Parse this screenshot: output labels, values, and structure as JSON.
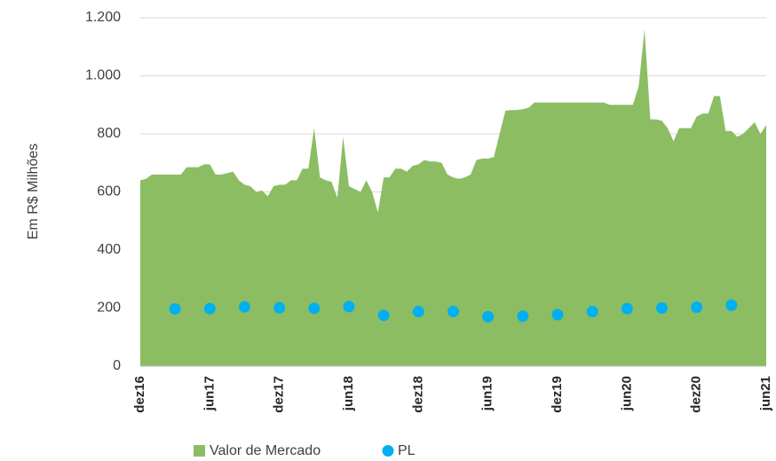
{
  "chart_data": {
    "type": "area",
    "ylabel": "Em R$ Milhões",
    "xlim": [
      0,
      54
    ],
    "xticks": [
      {
        "value": 0,
        "label": "dez16"
      },
      {
        "value": 6,
        "label": "jun17"
      },
      {
        "value": 12,
        "label": "dez17"
      },
      {
        "value": 18,
        "label": "jun18"
      },
      {
        "value": 24,
        "label": "dez18"
      },
      {
        "value": 30,
        "label": "jun19"
      },
      {
        "value": 36,
        "label": "dez19"
      },
      {
        "value": 42,
        "label": "jun20"
      },
      {
        "value": 48,
        "label": "dez20"
      },
      {
        "value": 54,
        "label": "jun21"
      }
    ],
    "ylim": [
      0,
      1200
    ],
    "yticks": [
      0,
      200,
      400,
      600,
      800,
      {
        "value": 1000,
        "label": "1.000"
      },
      {
        "value": 1200,
        "label": "1.200"
      }
    ],
    "grid": true,
    "legend": "bottom",
    "series": [
      {
        "name": "Valor de Mercado",
        "type": "area",
        "color": "#8cbd63",
        "x": [
          0,
          0.5,
          1,
          1.5,
          2,
          2.5,
          3,
          3.5,
          4,
          4.5,
          5,
          5.5,
          6,
          6.5,
          7,
          7.5,
          8,
          8.5,
          9,
          9.5,
          10,
          10.5,
          11,
          11.5,
          12,
          12.5,
          13,
          13.5,
          14,
          14.5,
          15,
          15.5,
          16,
          16.5,
          17,
          17.5,
          18,
          18.5,
          19,
          19.5,
          20,
          20.5,
          21,
          21.5,
          22,
          22.5,
          23,
          23.5,
          24,
          24.5,
          25,
          25.5,
          26,
          26.5,
          27,
          27.5,
          28,
          28.5,
          29,
          29.5,
          30,
          30.5,
          31,
          31.5,
          32,
          32.5,
          33,
          33.5,
          34,
          34.5,
          35,
          35.5,
          36,
          36.5,
          37,
          37.5,
          38,
          38.5,
          39,
          39.5,
          40,
          40.5,
          41,
          41.5,
          42,
          42.5,
          43,
          43.5,
          44,
          44.5,
          45,
          45.5,
          46,
          46.5,
          47,
          47.5,
          48,
          48.5,
          49,
          49.5,
          50,
          50.5,
          51,
          51.5,
          52,
          52.5,
          53,
          53.5,
          54
        ],
        "values": [
          640,
          645,
          660,
          660,
          660,
          660,
          660,
          660,
          685,
          685,
          685,
          695,
          695,
          660,
          660,
          665,
          670,
          640,
          625,
          620,
          600,
          605,
          585,
          620,
          625,
          625,
          640,
          640,
          680,
          680,
          820,
          650,
          640,
          635,
          580,
          790,
          620,
          610,
          600,
          640,
          600,
          530,
          650,
          650,
          680,
          680,
          670,
          690,
          695,
          710,
          705,
          705,
          700,
          660,
          650,
          645,
          650,
          660,
          710,
          715,
          715,
          720,
          800,
          880,
          882,
          882,
          885,
          890,
          908,
          908,
          908,
          908,
          908,
          908,
          908,
          908,
          908,
          908,
          908,
          908,
          908,
          900,
          900,
          900,
          900,
          900,
          965,
          1160,
          850,
          850,
          845,
          820,
          775,
          820,
          820,
          820,
          860,
          870,
          870,
          930,
          930,
          810,
          810,
          790,
          800,
          820,
          840,
          800,
          830
        ]
      },
      {
        "name": "PL",
        "type": "scatter",
        "color": "#00b0f0",
        "x": [
          3,
          6,
          9,
          12,
          15,
          18,
          21,
          24,
          27,
          30,
          33,
          36,
          39,
          42,
          45,
          48,
          51
        ],
        "values": [
          197,
          198,
          204,
          201,
          199,
          205,
          175,
          188,
          188,
          170,
          172,
          177,
          188,
          198,
          200,
          203,
          210
        ]
      }
    ]
  }
}
